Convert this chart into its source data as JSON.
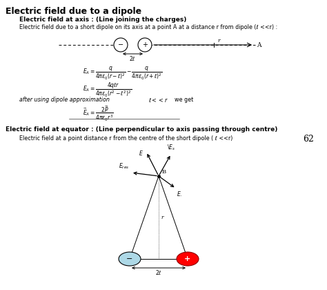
{
  "title": "Electric field due to a dipole",
  "section1_bold": "Electric field at axis : (Line joining the charges)",
  "section1_text": "Electric field due to a short dipole on its axis at a point A at a distance r from dipole (ℓ <<r) :",
  "section2_bold": "Electric field at equator : (Line perpendicular to axis passing through centre)",
  "section2_text": "Electric field at a point distance r from the centre of the short dipole ( ℓ <<r)",
  "page_number": "62",
  "bg_color": "#ffffff",
  "title_fontsize": 9,
  "heading_fontsize": 6.5,
  "text_fontsize": 5.8,
  "eq_fontsize": 5.5,
  "page_fontsize": 9
}
